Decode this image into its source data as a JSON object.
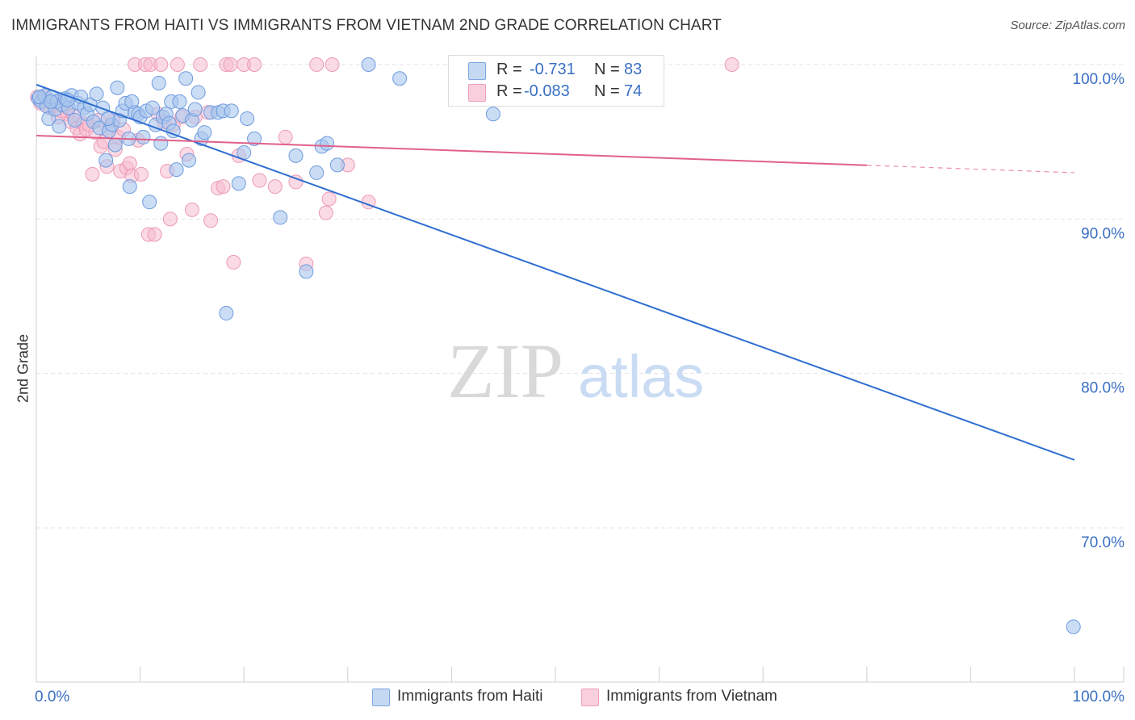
{
  "title": "IMMIGRANTS FROM HAITI VS IMMIGRANTS FROM VIETNAM 2ND GRADE CORRELATION CHART",
  "source": "Source: ZipAtlas.com",
  "watermark": {
    "zip": "ZIP",
    "atlas": "atlas"
  },
  "legend": {
    "haiti": {
      "r_label": "R =",
      "r_value": "-0.731",
      "n_label": "N =",
      "n_value": "83"
    },
    "vietnam": {
      "r_label": "R =",
      "r_value": "-0.083",
      "n_label": "N =",
      "n_value": "74"
    }
  },
  "bottom_legend": {
    "haiti": "Immigrants from Haiti",
    "vietnam": "Immigrants from Vietnam"
  },
  "colors": {
    "haiti_fill": "#a9c6ec",
    "haiti_stroke": "#6e9be0",
    "haiti_line": "#2f6fd0",
    "vietnam_fill": "#f6bcd0",
    "vietnam_stroke": "#ec9ab5",
    "vietnam_line": "#e0608a",
    "tick_label": "#3a6fc4"
  },
  "chart_data": {
    "type": "scatter",
    "title": "IMMIGRANTS FROM HAITI VS IMMIGRANTS FROM VIETNAM 2ND GRADE CORRELATION CHART",
    "xlabel": "",
    "ylabel": "2nd Grade",
    "xlim": [
      0,
      100
    ],
    "ylim": [
      61,
      101.5
    ],
    "x_tick_labels": [
      "0.0%",
      "100.0%"
    ],
    "y_ticks": [
      {
        "value": 100,
        "label": "100.0%"
      },
      {
        "value": 90,
        "label": "90.0%"
      },
      {
        "value": 80,
        "label": "80.0%"
      },
      {
        "value": 70,
        "label": "70.0%"
      }
    ],
    "grid": true,
    "series": [
      {
        "name": "Immigrants from Haiti",
        "r": -0.731,
        "n": 83,
        "trend": {
          "x": [
            0,
            100
          ],
          "y": [
            98.7,
            74.4
          ],
          "dashed_from": null
        },
        "points": [
          [
            0.2,
            97.8
          ],
          [
            0.5,
            97.6
          ],
          [
            0.8,
            98.0
          ],
          [
            1.0,
            97.3
          ],
          [
            1.2,
            96.5
          ],
          [
            1.5,
            97.9
          ],
          [
            1.8,
            97.1
          ],
          [
            2.0,
            97.6
          ],
          [
            2.2,
            96.0
          ],
          [
            2.5,
            97.4
          ],
          [
            2.8,
            97.8
          ],
          [
            3.1,
            97.2
          ],
          [
            3.4,
            98.0
          ],
          [
            3.7,
            96.4
          ],
          [
            4.0,
            97.5
          ],
          [
            4.3,
            97.9
          ],
          [
            4.6,
            97.2
          ],
          [
            4.9,
            96.8
          ],
          [
            5.2,
            97.4
          ],
          [
            5.5,
            96.3
          ],
          [
            5.8,
            98.1
          ],
          [
            6.1,
            95.9
          ],
          [
            6.4,
            97.2
          ],
          [
            6.7,
            93.8
          ],
          [
            7.0,
            95.7
          ],
          [
            7.3,
            96.1
          ],
          [
            7.6,
            94.8
          ],
          [
            7.8,
            98.5
          ],
          [
            8.0,
            96.4
          ],
          [
            8.3,
            97.0
          ],
          [
            8.6,
            97.5
          ],
          [
            8.9,
            95.2
          ],
          [
            9.0,
            92.1
          ],
          [
            9.2,
            97.6
          ],
          [
            9.5,
            96.9
          ],
          [
            9.8,
            96.8
          ],
          [
            10.0,
            96.6
          ],
          [
            10.3,
            95.3
          ],
          [
            10.6,
            97.0
          ],
          [
            10.9,
            91.1
          ],
          [
            11.2,
            97.2
          ],
          [
            11.5,
            96.1
          ],
          [
            11.8,
            98.8
          ],
          [
            12.0,
            94.9
          ],
          [
            12.2,
            96.6
          ],
          [
            12.5,
            96.8
          ],
          [
            12.8,
            96.2
          ],
          [
            13.0,
            97.6
          ],
          [
            13.2,
            95.7
          ],
          [
            13.5,
            93.2
          ],
          [
            13.8,
            97.6
          ],
          [
            14.1,
            96.7
          ],
          [
            14.4,
            99.1
          ],
          [
            14.7,
            93.8
          ],
          [
            15.0,
            96.4
          ],
          [
            15.3,
            97.1
          ],
          [
            15.6,
            98.2
          ],
          [
            15.9,
            95.2
          ],
          [
            16.2,
            95.6
          ],
          [
            16.8,
            96.9
          ],
          [
            17.5,
            96.9
          ],
          [
            18.0,
            97.0
          ],
          [
            18.3,
            83.9
          ],
          [
            18.8,
            97.0
          ],
          [
            19.5,
            92.3
          ],
          [
            20.0,
            94.3
          ],
          [
            20.3,
            96.5
          ],
          [
            21.0,
            95.2
          ],
          [
            23.5,
            90.1
          ],
          [
            25.0,
            94.1
          ],
          [
            26.0,
            86.6
          ],
          [
            27.0,
            93.0
          ],
          [
            27.5,
            94.7
          ],
          [
            28.0,
            94.9
          ],
          [
            29.0,
            93.5
          ],
          [
            32.0,
            100.0
          ],
          [
            35.0,
            99.1
          ],
          [
            44.0,
            96.8
          ],
          [
            99.9,
            63.6
          ],
          [
            0.3,
            97.9
          ],
          [
            1.4,
            97.6
          ],
          [
            3.0,
            97.7
          ],
          [
            6.9,
            96.5
          ]
        ]
      },
      {
        "name": "Immigrants from Vietnam",
        "r": -0.083,
        "n": 74,
        "trend": {
          "x": [
            0,
            100
          ],
          "y": [
            95.4,
            93.0
          ],
          "dashed_from": 80
        },
        "points": [
          [
            0.1,
            97.9
          ],
          [
            0.4,
            97.5
          ],
          [
            0.7,
            97.9
          ],
          [
            1.0,
            97.7
          ],
          [
            1.3,
            97.2
          ],
          [
            1.6,
            97.4
          ],
          [
            1.9,
            97.6
          ],
          [
            2.1,
            96.6
          ],
          [
            2.4,
            97.0
          ],
          [
            2.6,
            97.3
          ],
          [
            3.0,
            96.8
          ],
          [
            3.3,
            96.3
          ],
          [
            3.6,
            96.7
          ],
          [
            3.9,
            95.9
          ],
          [
            4.2,
            95.5
          ],
          [
            4.5,
            96.2
          ],
          [
            4.8,
            95.8
          ],
          [
            5.1,
            96.1
          ],
          [
            5.4,
            92.9
          ],
          [
            5.7,
            95.6
          ],
          [
            6.0,
            96.4
          ],
          [
            6.2,
            94.7
          ],
          [
            6.5,
            95.0
          ],
          [
            6.8,
            93.4
          ],
          [
            7.1,
            95.9
          ],
          [
            7.4,
            96.4
          ],
          [
            7.6,
            94.5
          ],
          [
            7.9,
            95.3
          ],
          [
            8.1,
            93.1
          ],
          [
            8.4,
            95.8
          ],
          [
            8.7,
            93.3
          ],
          [
            9.0,
            93.6
          ],
          [
            9.2,
            92.8
          ],
          [
            9.5,
            100.0
          ],
          [
            9.8,
            95.1
          ],
          [
            10.1,
            92.9
          ],
          [
            10.5,
            100.0
          ],
          [
            10.8,
            89.0
          ],
          [
            11.0,
            100.0
          ],
          [
            11.4,
            89.0
          ],
          [
            11.7,
            96.8
          ],
          [
            12.0,
            100.0
          ],
          [
            12.3,
            96.3
          ],
          [
            12.6,
            93.1
          ],
          [
            12.9,
            90.0
          ],
          [
            13.2,
            96.1
          ],
          [
            13.6,
            100.0
          ],
          [
            14.0,
            96.6
          ],
          [
            14.5,
            94.2
          ],
          [
            15.0,
            90.6
          ],
          [
            15.3,
            96.6
          ],
          [
            15.8,
            100.0
          ],
          [
            16.5,
            96.9
          ],
          [
            16.8,
            89.9
          ],
          [
            17.5,
            92.0
          ],
          [
            18.0,
            92.1
          ],
          [
            18.3,
            100.0
          ],
          [
            18.7,
            100.0
          ],
          [
            19.0,
            87.2
          ],
          [
            19.5,
            94.1
          ],
          [
            20.0,
            100.0
          ],
          [
            21.0,
            100.0
          ],
          [
            21.5,
            92.5
          ],
          [
            23.0,
            92.1
          ],
          [
            24.0,
            95.3
          ],
          [
            25.0,
            92.4
          ],
          [
            26.0,
            87.1
          ],
          [
            27.0,
            100.0
          ],
          [
            28.5,
            100.0
          ],
          [
            28.2,
            91.3
          ],
          [
            27.9,
            90.4
          ],
          [
            30.0,
            93.5
          ],
          [
            32.0,
            91.1
          ],
          [
            67.0,
            100.0
          ]
        ]
      }
    ]
  }
}
